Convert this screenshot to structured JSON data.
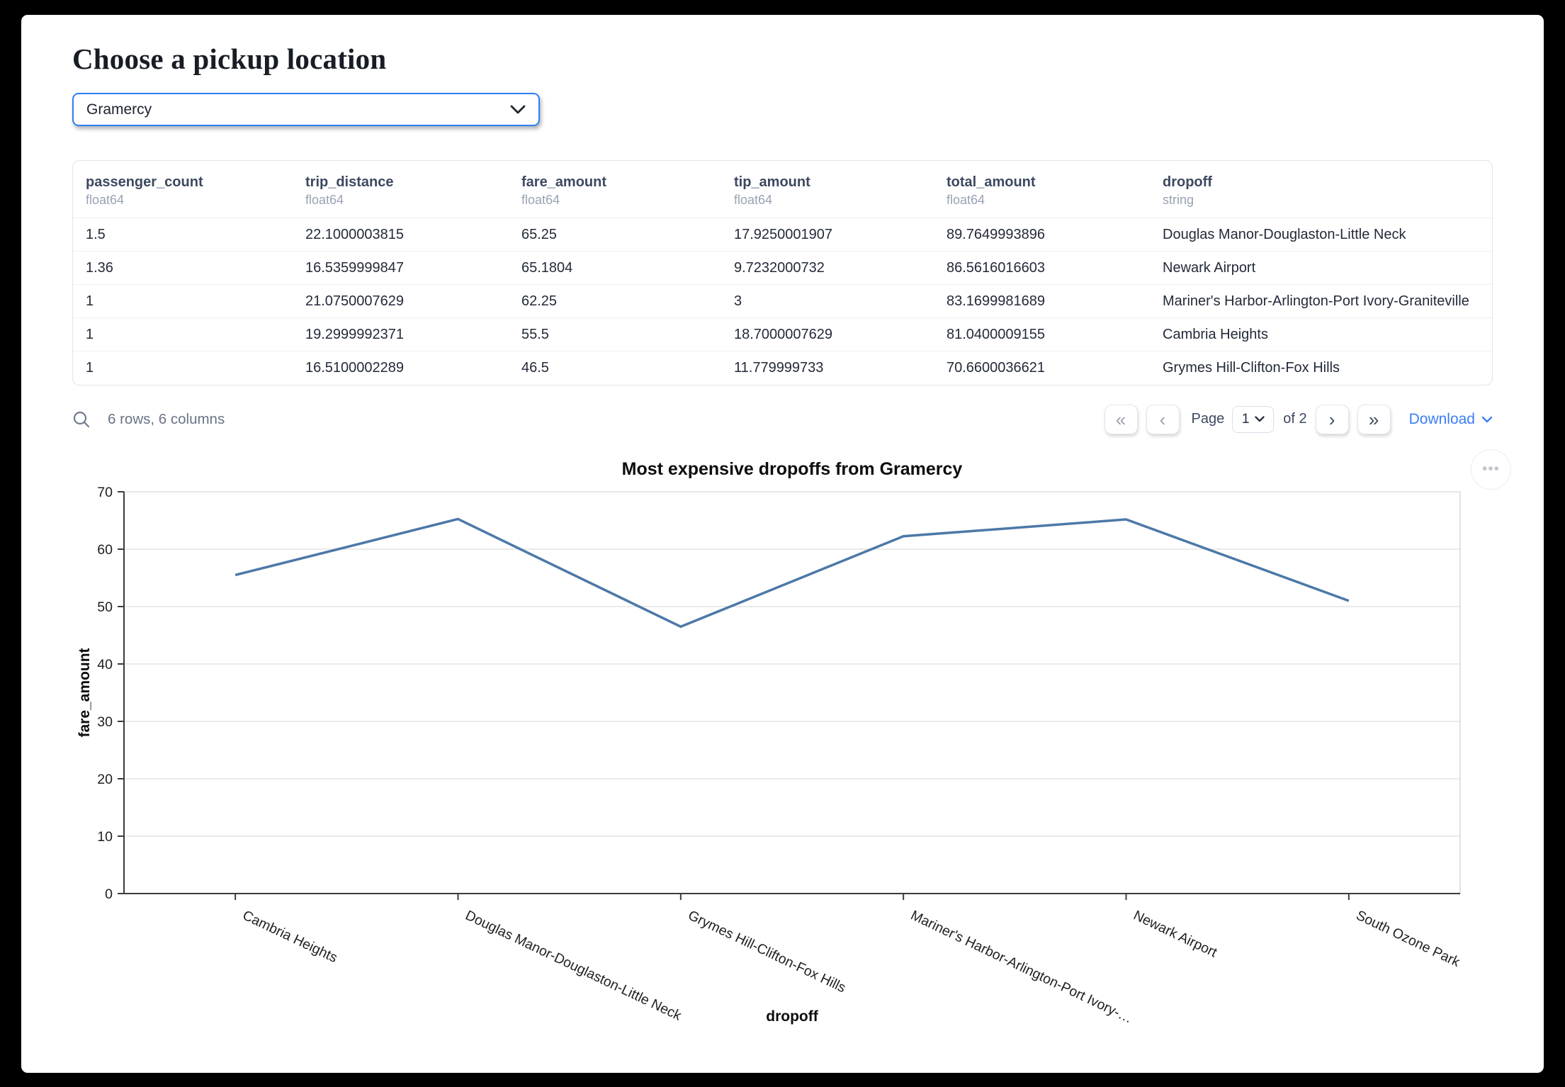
{
  "page": {
    "title": "Choose a pickup location"
  },
  "pickup": {
    "value": "Gramercy"
  },
  "table": {
    "columns": [
      {
        "name": "passenger_count",
        "dtype": "float64"
      },
      {
        "name": "trip_distance",
        "dtype": "float64"
      },
      {
        "name": "fare_amount",
        "dtype": "float64"
      },
      {
        "name": "tip_amount",
        "dtype": "float64"
      },
      {
        "name": "total_amount",
        "dtype": "float64"
      },
      {
        "name": "dropoff",
        "dtype": "string"
      }
    ],
    "rows": [
      [
        "1.5",
        "22.1000003815",
        "65.25",
        "17.9250001907",
        "89.7649993896",
        "Douglas Manor-Douglaston-Little Neck"
      ],
      [
        "1.36",
        "16.5359999847",
        "65.1804",
        "9.7232000732",
        "86.5616016603",
        "Newark Airport"
      ],
      [
        "1",
        "21.0750007629",
        "62.25",
        "3",
        "83.1699981689",
        "Mariner's Harbor-Arlington-Port Ivory-Graniteville"
      ],
      [
        "1",
        "19.2999992371",
        "55.5",
        "18.7000007629",
        "81.0400009155",
        "Cambria Heights"
      ],
      [
        "1",
        "16.5100002289",
        "46.5",
        "11.779999733",
        "70.6600036621",
        "Grymes Hill-Clifton-Fox Hills"
      ]
    ]
  },
  "footer": {
    "summary": "6 rows, 6 columns",
    "page_label": "Page",
    "page_value": "1",
    "of_label": "of 2",
    "download_label": "Download"
  },
  "icons": {
    "first_page": "«",
    "prev_page": "‹",
    "next_page": "›",
    "last_page": "»",
    "more_options": "•••"
  },
  "colors": {
    "accent_blue": "#2e7ef7",
    "link_blue": "#3b7cf6",
    "line_blue": "#4c78a8"
  },
  "chart_data": {
    "type": "line",
    "title": "Most expensive dropoffs from Gramercy",
    "xlabel": "dropoff",
    "ylabel": "fare_amount",
    "categories": [
      "Cambria Heights",
      "Douglas Manor-Douglaston-Little Neck",
      "Grymes Hill-Clifton-Fox Hills",
      "Mariner's Harbor-Arlington-Port Ivory-…",
      "Newark Airport",
      "South Ozone Park"
    ],
    "values": [
      55.5,
      65.25,
      46.5,
      62.25,
      65.1804,
      51
    ],
    "ylim": [
      0,
      70
    ],
    "yticks": [
      0,
      10,
      20,
      30,
      40,
      50,
      60,
      70
    ],
    "grid": true,
    "legend": "none",
    "line_color": "#4c78a8"
  }
}
